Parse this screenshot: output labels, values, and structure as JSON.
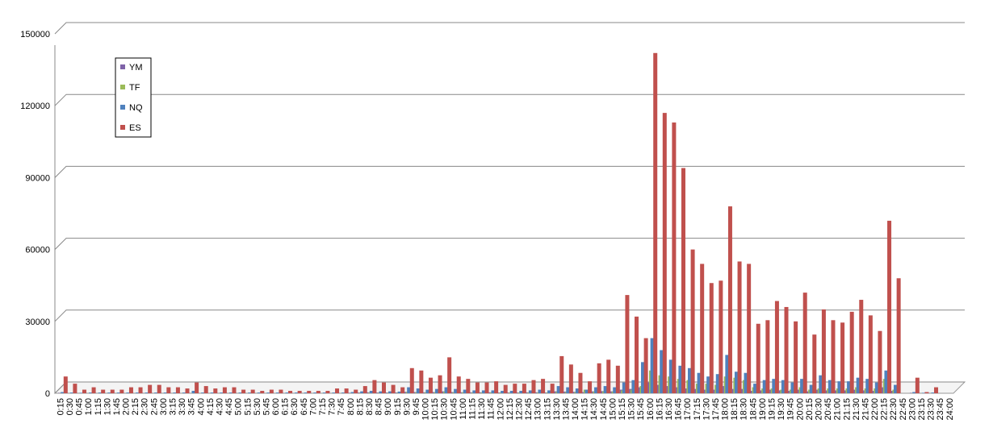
{
  "chart_data": {
    "type": "bar",
    "categories": [
      "0:15",
      "0:30",
      "0:45",
      "1:00",
      "1:15",
      "1:30",
      "1:45",
      "2:00",
      "2:15",
      "2:30",
      "2:45",
      "3:00",
      "3:15",
      "3:30",
      "3:45",
      "4:00",
      "4:15",
      "4:30",
      "4:45",
      "5:00",
      "5:15",
      "5:30",
      "5:45",
      "6:00",
      "6:15",
      "6:30",
      "6:45",
      "7:00",
      "7:15",
      "7:30",
      "7:45",
      "8:00",
      "8:15",
      "8:30",
      "8:45",
      "9:00",
      "9:15",
      "9:30",
      "9:45",
      "10:00",
      "10:15",
      "10:30",
      "10:45",
      "11:00",
      "11:15",
      "11:30",
      "11:45",
      "12:00",
      "12:15",
      "12:30",
      "12:45",
      "13:00",
      "13:15",
      "13:30",
      "13:45",
      "14:00",
      "14:15",
      "14:30",
      "14:45",
      "15:00",
      "15:15",
      "15:30",
      "15:45",
      "16:00",
      "16:15",
      "16:30",
      "16:45",
      "17:00",
      "17:15",
      "17:30",
      "17:45",
      "18:00",
      "18:15",
      "18:30",
      "18:45",
      "19:00",
      "19:15",
      "19:30",
      "19:45",
      "20:00",
      "20:15",
      "20:30",
      "20:45",
      "21:00",
      "21:15",
      "21:30",
      "21:45",
      "22:00",
      "22:15",
      "22:30",
      "22:45",
      "23:00",
      "23:15",
      "23:30",
      "23:45",
      "24:00"
    ],
    "series": [
      {
        "name": "YM",
        "color": "#7f63a8",
        "values": [
          200,
          100,
          100,
          100,
          100,
          100,
          100,
          100,
          100,
          100,
          100,
          100,
          100,
          100,
          100,
          100,
          100,
          100,
          100,
          100,
          100,
          100,
          100,
          100,
          100,
          100,
          100,
          100,
          100,
          100,
          100,
          200,
          300,
          400,
          300,
          300,
          300,
          600,
          500,
          400,
          500,
          800,
          500,
          400,
          400,
          400,
          400,
          300,
          300,
          300,
          400,
          400,
          300,
          800,
          700,
          600,
          500,
          800,
          900,
          800,
          1500,
          1800,
          2500,
          4500,
          3500,
          3000,
          2500,
          2000,
          1800,
          1500,
          1500,
          3000,
          1800,
          1800,
          1000,
          1200,
          1500,
          1200,
          1000,
          1500,
          800,
          1500,
          1200,
          1200,
          1200,
          1500,
          1200,
          1000,
          2500,
          1000,
          0,
          200,
          100,
          100,
          0,
          0
        ]
      },
      {
        "name": "TF",
        "color": "#9bbb59",
        "values": [
          100,
          100,
          100,
          100,
          100,
          100,
          100,
          100,
          100,
          100,
          100,
          100,
          100,
          100,
          100,
          100,
          100,
          100,
          100,
          100,
          100,
          100,
          100,
          100,
          100,
          100,
          100,
          100,
          100,
          100,
          100,
          100,
          200,
          300,
          200,
          200,
          200,
          500,
          400,
          400,
          400,
          700,
          400,
          400,
          300,
          300,
          300,
          300,
          300,
          300,
          300,
          300,
          300,
          600,
          500,
          500,
          1500,
          700,
          800,
          700,
          1200,
          1500,
          3000,
          9500,
          7500,
          7000,
          6000,
          5500,
          4000,
          4000,
          3500,
          7000,
          6500,
          5500,
          2500,
          2000,
          2000,
          1500,
          1500,
          2500,
          1500,
          2000,
          2000,
          2000,
          2000,
          2500,
          2000,
          2000,
          6000,
          1500,
          0,
          100,
          100,
          100,
          0,
          0
        ]
      },
      {
        "name": "NQ",
        "color": "#4f81bd",
        "values": [
          500,
          300,
          200,
          300,
          300,
          300,
          300,
          300,
          300,
          300,
          300,
          300,
          300,
          300,
          1000,
          300,
          300,
          300,
          300,
          300,
          300,
          300,
          300,
          300,
          300,
          300,
          300,
          300,
          300,
          300,
          300,
          500,
          800,
          1000,
          800,
          800,
          700,
          2500,
          2000,
          1500,
          1800,
          2500,
          1800,
          1500,
          1200,
          1200,
          1200,
          1000,
          1000,
          1000,
          1200,
          1500,
          1200,
          3000,
          2500,
          2000,
          1500,
          2500,
          3000,
          2500,
          4500,
          5500,
          13000,
          23000,
          18000,
          14000,
          11500,
          10500,
          8500,
          7000,
          8000,
          16000,
          9000,
          8500,
          4000,
          5500,
          6000,
          5500,
          4500,
          6000,
          3500,
          7500,
          5500,
          5000,
          5000,
          6500,
          6000,
          4500,
          9500,
          3500,
          0,
          500,
          200,
          300,
          0,
          0
        ]
      },
      {
        "name": "ES",
        "color": "#c0504d",
        "values": [
          7000,
          4000,
          1500,
          2500,
          1500,
          1500,
          1500,
          2500,
          2500,
          3500,
          3500,
          2500,
          2500,
          2000,
          4500,
          3000,
          2000,
          2500,
          2500,
          1500,
          1500,
          1000,
          1500,
          1500,
          1000,
          1000,
          1000,
          1000,
          1000,
          2000,
          2000,
          1500,
          3000,
          5500,
          4500,
          3500,
          2500,
          10500,
          9500,
          6500,
          7500,
          15000,
          7000,
          6000,
          4500,
          4500,
          5000,
          3500,
          4000,
          4000,
          5500,
          6000,
          4000,
          15500,
          12000,
          8500,
          5000,
          12500,
          14000,
          11500,
          41000,
          32000,
          23000,
          142000,
          117000,
          113000,
          94000,
          60000,
          54000,
          46000,
          47000,
          78000,
          55000,
          54000,
          29000,
          30500,
          38500,
          36000,
          30000,
          42000,
          24500,
          35000,
          30500,
          29500,
          34000,
          39000,
          32500,
          26000,
          72000,
          48000,
          0,
          6500,
          500,
          2500,
          0,
          0
        ]
      }
    ],
    "ylim": [
      0,
      150000
    ],
    "yticks": [
      0,
      30000,
      60000,
      90000,
      120000,
      150000
    ],
    "grid": true,
    "legend": "upper left"
  }
}
